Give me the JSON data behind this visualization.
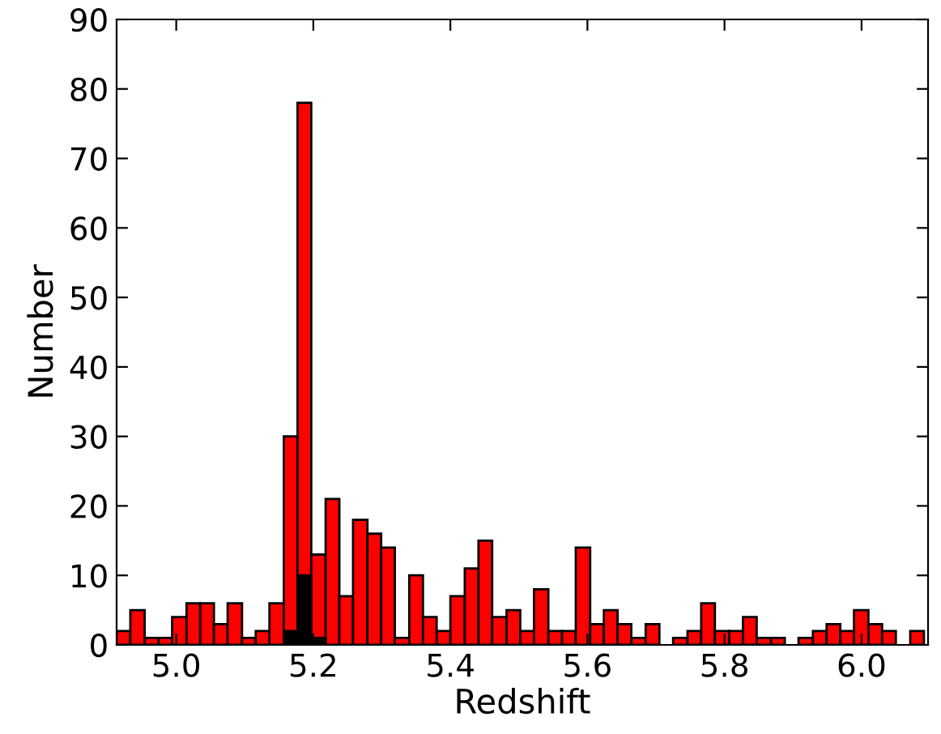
{
  "chart_data": {
    "type": "histogram",
    "xlabel": "Redshift",
    "ylabel": "Number",
    "bins": [
      4.913,
      4.933,
      4.954,
      4.974,
      4.994,
      5.015,
      5.035,
      5.055,
      5.075,
      5.096,
      5.116,
      5.136,
      5.157,
      5.177,
      5.197,
      5.218,
      5.238,
      5.258,
      5.279,
      5.299,
      5.319,
      5.34,
      5.36,
      5.38,
      5.4,
      5.421,
      5.441,
      5.461,
      5.482,
      5.502,
      5.522,
      5.543,
      5.563,
      5.583,
      5.604,
      5.624,
      5.644,
      5.664,
      5.685,
      5.705,
      5.725,
      5.746,
      5.766,
      5.786,
      5.807,
      5.827,
      5.847,
      5.868,
      5.888,
      5.908,
      5.929,
      5.949,
      5.969,
      5.989,
      6.01,
      6.03,
      6.05,
      6.071,
      6.091
    ],
    "series": [
      {
        "color": "#ff0000",
        "values": [
          2,
          5,
          1,
          1,
          4,
          6,
          6,
          3,
          6,
          1,
          2,
          6,
          30,
          78,
          13,
          21,
          7,
          18,
          16,
          14,
          1,
          10,
          4,
          2,
          7,
          11,
          15,
          4,
          5,
          2,
          8,
          2,
          2,
          14,
          3,
          5,
          3,
          1,
          3,
          0,
          1,
          2,
          6,
          2,
          2,
          4,
          1,
          1,
          0,
          1,
          2,
          3,
          2,
          5,
          3,
          2,
          0,
          2
        ]
      },
      {
        "color": "#000000",
        "values": [
          0,
          0,
          0,
          0,
          0,
          0,
          0,
          0,
          0,
          0,
          0,
          0,
          2,
          10,
          1,
          0,
          0,
          0,
          0,
          0,
          0,
          0,
          0,
          0,
          0,
          0,
          0,
          0,
          0,
          0,
          0,
          0,
          0,
          0,
          0,
          0,
          0,
          0,
          0,
          0,
          0,
          0,
          0,
          0,
          0,
          0,
          0,
          0,
          0,
          0,
          0,
          0,
          0,
          0,
          0,
          0,
          0,
          0
        ]
      }
    ],
    "xlim": [
      4.913,
      6.097
    ],
    "ylim": [
      0,
      90
    ],
    "xticks": [
      {
        "value": 5.0,
        "label": "5.0"
      },
      {
        "value": 5.2,
        "label": "5.2"
      },
      {
        "value": 5.4,
        "label": "5.4"
      },
      {
        "value": 5.6,
        "label": "5.6"
      },
      {
        "value": 5.8,
        "label": "5.8"
      },
      {
        "value": 6.0,
        "label": "6.0"
      }
    ],
    "yticks": [
      0,
      10,
      20,
      30,
      40,
      50,
      60,
      70,
      80,
      90
    ],
    "grid": false,
    "legend": false
  }
}
